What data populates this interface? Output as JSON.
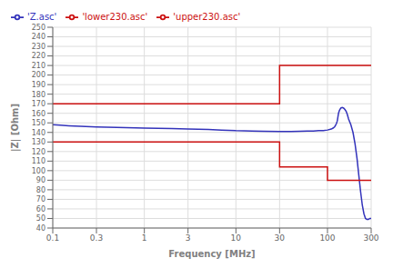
{
  "chart_data": {
    "type": "line",
    "xlabel": "Frequency [MHz]",
    "ylabel": "|Z| [Ohm]",
    "log": "x",
    "grid": true,
    "legend": "upper left",
    "xlim": [
      0.1,
      300
    ],
    "xticks": [
      0.1,
      0.3,
      1,
      3,
      10,
      30,
      100,
      300
    ],
    "ylim": [
      40,
      250
    ],
    "yticks": [
      40,
      50,
      60,
      70,
      80,
      90,
      100,
      110,
      120,
      130,
      140,
      150,
      160,
      170,
      180,
      190,
      200,
      210,
      220,
      230,
      240,
      250
    ],
    "series": [
      {
        "name": "'Z.asc'",
        "color": "#3333bb",
        "x": [
          0.1,
          0.12,
          0.15,
          0.2,
          0.3,
          0.5,
          0.8,
          1,
          2,
          3,
          5,
          7,
          10,
          15,
          20,
          30,
          40,
          50,
          60,
          70,
          80,
          90,
          100,
          110,
          115,
          120,
          125,
          128,
          130,
          132,
          135,
          138,
          140,
          145,
          150,
          155,
          160,
          165,
          170,
          180,
          190,
          200,
          210,
          220,
          230,
          240,
          250,
          260,
          270,
          280,
          290,
          300
        ],
        "values": [
          148,
          147.5,
          147,
          146.5,
          145.8,
          145.2,
          144.8,
          144.5,
          144.0,
          143.5,
          143.0,
          142.5,
          141.8,
          141.5,
          141.2,
          141.0,
          141.0,
          141.2,
          141.5,
          141.5,
          141.8,
          142.0,
          142.5,
          143.5,
          144.5,
          146.0,
          149.0,
          152.0,
          156.0,
          160.0,
          163.0,
          164.5,
          165.5,
          166.0,
          165.5,
          164.0,
          162.0,
          158.5,
          154.0,
          148.0,
          140.0,
          128.0,
          113.0,
          95.0,
          78.0,
          64.0,
          55.0,
          50.0,
          49.0,
          49.0,
          50.0,
          50.0
        ]
      },
      {
        "name": "'upper230.asc'",
        "color": "#cc1111",
        "x": [
          0.1,
          30,
          30,
          300
        ],
        "values": [
          170,
          170,
          210,
          210
        ]
      },
      {
        "name": "'lower230.asc'",
        "color": "#cc1111",
        "x": [
          0.1,
          30,
          30,
          100,
          100,
          300
        ],
        "values": [
          130,
          130,
          104,
          104,
          90,
          90
        ]
      }
    ]
  }
}
